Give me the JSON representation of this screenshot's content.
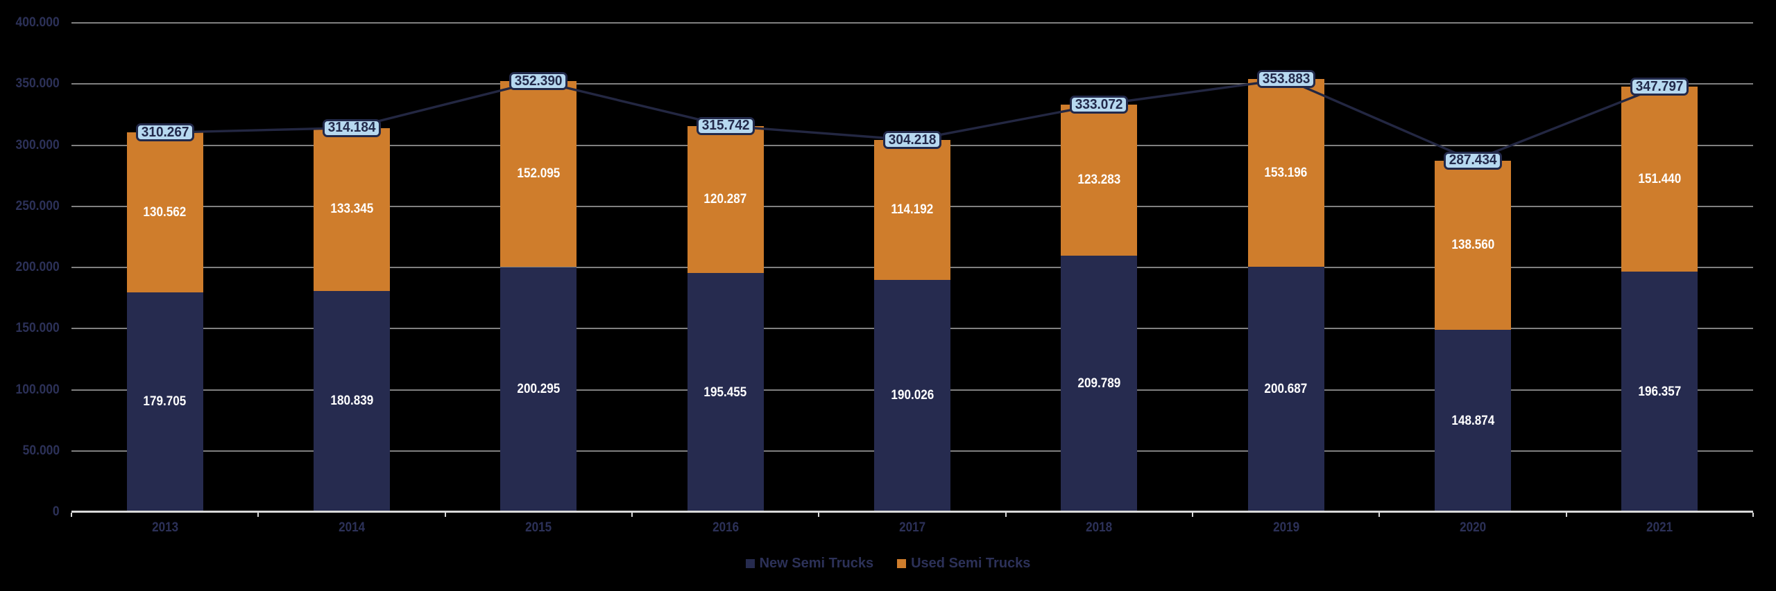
{
  "chart": {
    "background": "#000000",
    "colors": {
      "new_bar": "#262b4f",
      "used_bar": "#cf7d2c",
      "line": "#232742",
      "callout_fill": "#b7d9f0",
      "callout_border": "#22294a",
      "callout_text": "#22294a",
      "bar_label": "#ffffff",
      "axis_label": "#2c3158",
      "gridline": "#808080",
      "axis_line": "#d9d9d9"
    },
    "legend": [
      {
        "label": "New Semi Trucks",
        "swatch": "#262b4f"
      },
      {
        "label": "Used Semi Trucks",
        "swatch": "#cf7d2c"
      }
    ]
  },
  "chart_data": {
    "type": "bar",
    "stacked": true,
    "title": "",
    "xlabel": "",
    "ylabel": "",
    "categories": [
      "2013",
      "2014",
      "2015",
      "2016",
      "2017",
      "2018",
      "2019",
      "2020",
      "2021"
    ],
    "series": [
      {
        "name": "New Semi Trucks",
        "values": [
          179705,
          180839,
          200295,
          195455,
          190026,
          209789,
          200687,
          148874,
          196357
        ]
      },
      {
        "name": "Used Semi Trucks",
        "values": [
          130562,
          133345,
          152095,
          120287,
          114192,
          123283,
          153196,
          138560,
          151440
        ]
      }
    ],
    "totals": [
      310267,
      314184,
      352390,
      315742,
      304218,
      333072,
      353883,
      287434,
      347797
    ],
    "total_line": true,
    "ylim": [
      0,
      400000
    ],
    "ytick_step": 50000,
    "grid": true,
    "legend_position": "bottom",
    "number_format": "thousands-dot"
  }
}
